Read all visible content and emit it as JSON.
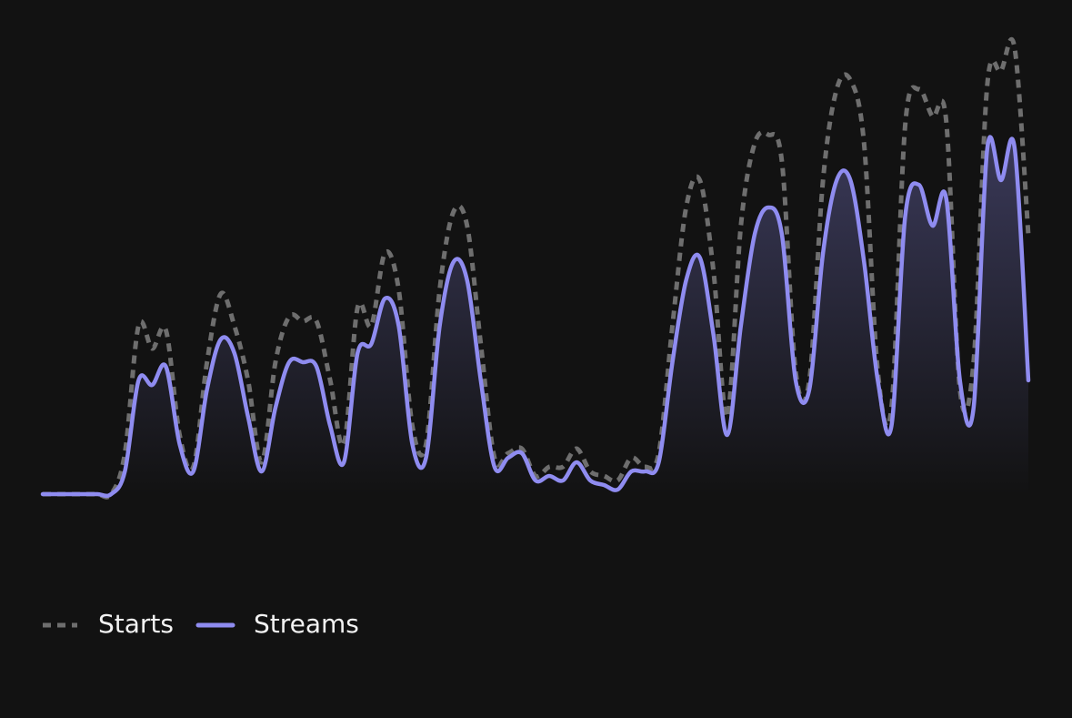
{
  "chart_data": {
    "type": "area-line",
    "ylim": [
      0,
      100
    ],
    "legend": "bottom-left",
    "series": [
      {
        "name": "Starts",
        "color": "#6e6e6e",
        "style": "dashed",
        "fill": false,
        "values": [
          0,
          0,
          0,
          0,
          0,
          0,
          9,
          37,
          32,
          36,
          13,
          6,
          29,
          44,
          37,
          25,
          7,
          29,
          39,
          38,
          38,
          25,
          11,
          41,
          37,
          53,
          45,
          15,
          11,
          45,
          62,
          59,
          33,
          8,
          9,
          10,
          4,
          6,
          6,
          10,
          5,
          4,
          3,
          8,
          6,
          9,
          37,
          63,
          69,
          49,
          17,
          59,
          77,
          79,
          73,
          27,
          25,
          69,
          89,
          91,
          77,
          27,
          19,
          81,
          89,
          83,
          82,
          23,
          29,
          90,
          93,
          98,
          57
        ]
      },
      {
        "name": "Streams",
        "color": "#8f8cf0",
        "style": "solid",
        "fill": true,
        "values": [
          0,
          0,
          0,
          0,
          0,
          0,
          5,
          25,
          24,
          28,
          11,
          5,
          23,
          34,
          31,
          17,
          5,
          19,
          29,
          29,
          28,
          15,
          7,
          31,
          33,
          43,
          37,
          11,
          8,
          37,
          51,
          47,
          25,
          6,
          8,
          9,
          3,
          4,
          3,
          7,
          3,
          2,
          1,
          5,
          5,
          7,
          29,
          47,
          52,
          35,
          13,
          37,
          57,
          63,
          57,
          25,
          23,
          53,
          69,
          69,
          51,
          25,
          15,
          61,
          68,
          59,
          65,
          25,
          19,
          76,
          69,
          76,
          25
        ]
      }
    ]
  }
}
